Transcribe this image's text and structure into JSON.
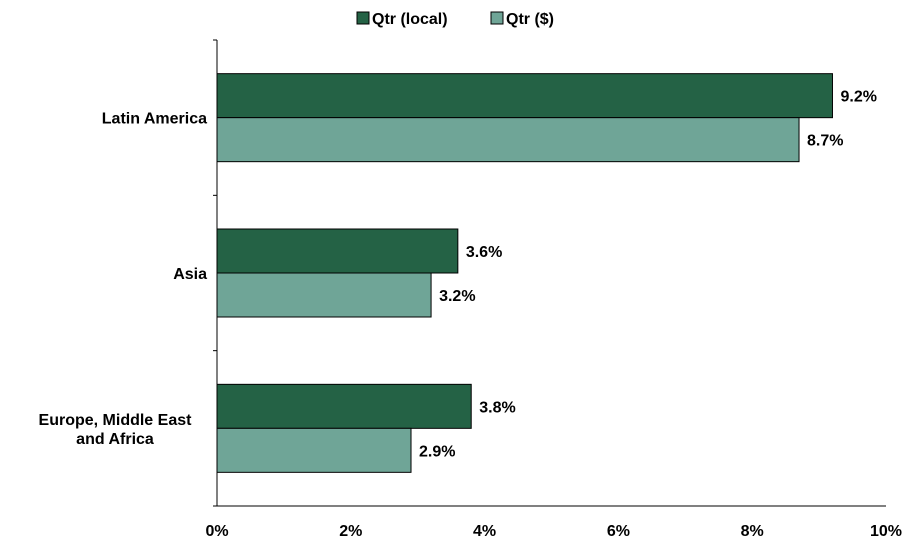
{
  "chart_data": {
    "type": "bar",
    "orientation": "horizontal",
    "categories": [
      [
        "Latin America"
      ],
      [
        "Asia"
      ],
      [
        "Europe, Middle East",
        "and Africa"
      ]
    ],
    "series": [
      {
        "name": "Qtr (local)",
        "color": "#246245",
        "values": [
          9.2,
          3.6,
          3.8
        ],
        "labels": [
          "9.2%",
          "3.6%",
          "3.8%"
        ]
      },
      {
        "name": "Qtr ($)",
        "color": "#6fa597",
        "values": [
          8.7,
          3.2,
          2.9
        ],
        "labels": [
          "8.7%",
          "3.2%",
          "2.9%"
        ]
      }
    ],
    "xlim": [
      0,
      10
    ],
    "x_ticks": [
      0,
      2,
      4,
      6,
      8,
      10
    ],
    "x_tick_labels": [
      "0%",
      "2%",
      "4%",
      "6%",
      "8%",
      "10%"
    ],
    "legend_position": "top-center",
    "grid": false
  }
}
